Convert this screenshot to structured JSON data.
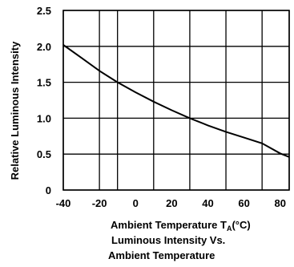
{
  "chart_data": {
    "type": "line",
    "caption_line1": "Luminous Intensity Vs.",
    "caption_line2": "Ambient Temperature",
    "xlabel_main": "Ambient Temperature T",
    "xlabel_sub": "A",
    "xlabel_unit": "(°C)",
    "ylabel": "Relative Luminous Intensity",
    "xlim": [
      -40,
      85
    ],
    "ylim": [
      0,
      2.5
    ],
    "x_ticks": [
      -40,
      -20,
      0,
      20,
      40,
      60,
      80
    ],
    "x_tick_labels": [
      "-40",
      "-20",
      "0",
      "20",
      "40",
      "60",
      "80"
    ],
    "y_ticks": [
      0,
      0.5,
      1.0,
      1.5,
      2.0,
      2.5
    ],
    "y_tick_labels": [
      "0",
      "0.5",
      "1.0",
      "1.5",
      "2.0",
      "2.5"
    ],
    "x_grid": [
      -40,
      -20,
      -10,
      10,
      30,
      50,
      70,
      85
    ],
    "y_grid": [
      0,
      0.5,
      1.0,
      1.5,
      2.0,
      2.5
    ],
    "grid": true,
    "series": [
      {
        "x": [
          -40,
          -30,
          -20,
          -10,
          0,
          10,
          20,
          30,
          40,
          50,
          60,
          70,
          80,
          85
        ],
        "y": [
          2.02,
          1.84,
          1.66,
          1.5,
          1.36,
          1.23,
          1.11,
          1.0,
          0.9,
          0.81,
          0.73,
          0.65,
          0.51,
          0.46
        ]
      }
    ]
  }
}
